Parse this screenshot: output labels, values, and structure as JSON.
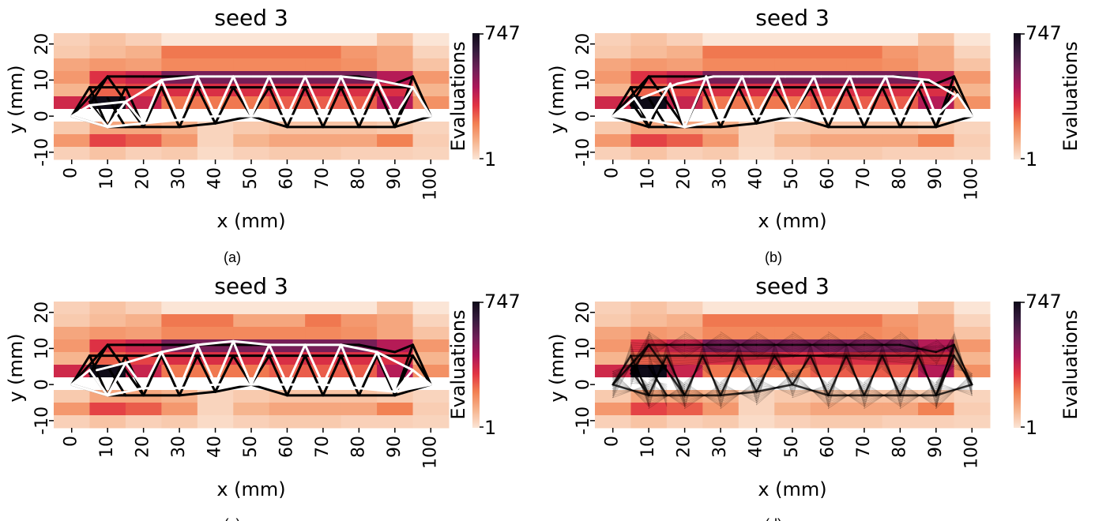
{
  "figure": {
    "captions": [
      "(a)",
      "(b)",
      "(c)",
      "(d)"
    ]
  },
  "colors": {
    "colormap": [
      "#fbe5d6",
      "#f6b48e",
      "#f28052",
      "#e13342",
      "#ad1759",
      "#701f57",
      "#371b3e",
      "#0e0b18"
    ],
    "truss_white": "#ffffff",
    "truss_black": "#000000",
    "gap": "#ffffff"
  },
  "chart_data": [
    {
      "type": "heatmap",
      "title": "seed 3",
      "xlabel": "x (mm)",
      "ylabel": "y (mm)",
      "x_ticks": [
        "0",
        "10",
        "20",
        "30",
        "40",
        "50",
        "60",
        "70",
        "80",
        "90",
        "100"
      ],
      "y_ticks": [
        "-10",
        "0",
        "10",
        "20"
      ],
      "xlim": [
        -5,
        105
      ],
      "ylim": [
        -12,
        23
      ],
      "colorbar": {
        "label": "Evaluations",
        "min_label": "1",
        "max_label": "747",
        "min": 1,
        "max": 747,
        "scale": "log"
      },
      "overlay": "final truss (black) and best design (white)"
    },
    {
      "type": "heatmap",
      "title": "seed 3",
      "xlabel": "x (mm)",
      "ylabel": "y (mm)",
      "x_ticks": [
        "0",
        "10",
        "20",
        "30",
        "40",
        "50",
        "60",
        "70",
        "80",
        "90",
        "100"
      ],
      "y_ticks": [
        "-10",
        "0",
        "10",
        "20"
      ],
      "xlim": [
        -5,
        105
      ],
      "ylim": [
        -12,
        23
      ],
      "colorbar": {
        "label": "Evaluations",
        "min_label": "1",
        "max_label": "747",
        "min": 1,
        "max": 747,
        "scale": "log"
      },
      "overlay": "final truss (black) and best design (white)"
    },
    {
      "type": "heatmap",
      "title": "seed 3",
      "xlabel": "x (mm)",
      "ylabel": "y (mm)",
      "x_ticks": [
        "0",
        "10",
        "20",
        "30",
        "40",
        "50",
        "60",
        "70",
        "80",
        "90",
        "100"
      ],
      "y_ticks": [
        "-10",
        "0",
        "10",
        "20"
      ],
      "xlim": [
        -5,
        105
      ],
      "ylim": [
        -12,
        23
      ],
      "colorbar": {
        "label": "Evaluations",
        "min_label": "1",
        "max_label": "747",
        "min": 1,
        "max": 747,
        "scale": "log"
      },
      "overlay": "final truss (black) and best design (white)"
    },
    {
      "type": "heatmap",
      "title": "seed 3",
      "xlabel": "x (mm)",
      "ylabel": "y (mm)",
      "x_ticks": [
        "0",
        "10",
        "20",
        "30",
        "40",
        "50",
        "60",
        "70",
        "80",
        "90",
        "100"
      ],
      "y_ticks": [
        "-10",
        "0",
        "10",
        "20"
      ],
      "xlim": [
        -5,
        105
      ],
      "ylim": [
        -12,
        23
      ],
      "colorbar": {
        "label": "Evaluations",
        "min_label": "1",
        "max_label": "747",
        "min": 1,
        "max": 747,
        "scale": "log"
      },
      "overlay": "many evaluated trusses drawn translucent"
    }
  ]
}
